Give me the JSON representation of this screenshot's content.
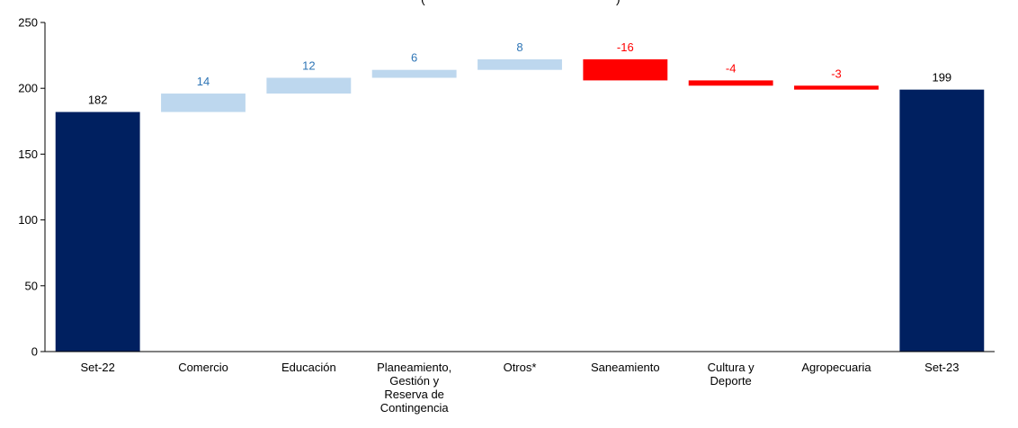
{
  "chart_data": {
    "type": "bar",
    "subtype": "waterfall",
    "title": "(",
    "title_tail": ")",
    "categories": [
      [
        "Set-22"
      ],
      [
        "Comercio"
      ],
      [
        "Educación"
      ],
      [
        "Planeamiento,",
        "Gestión y",
        "Reserva de",
        "Contingencia"
      ],
      [
        "Otros*"
      ],
      [
        "Saneamiento"
      ],
      [
        "Cultura y",
        "Deporte"
      ],
      [
        "Agropecuaria"
      ],
      [
        "Set-23"
      ]
    ],
    "values": [
      182,
      14,
      12,
      6,
      8,
      -16,
      -4,
      -3,
      199
    ],
    "value_labels": [
      "182",
      "14",
      "12",
      "6",
      "8",
      "-16",
      "-4",
      "-3",
      "199"
    ],
    "kinds": [
      "total",
      "delta",
      "delta",
      "delta",
      "delta",
      "delta",
      "delta",
      "delta",
      "total"
    ],
    "ylim": [
      0,
      250
    ],
    "yticks": [
      "0",
      "50",
      "100",
      "150",
      "200",
      "250"
    ],
    "grid": false,
    "legend": "none",
    "colors": {
      "total": "#002060",
      "increase": "#bdd7ee",
      "decrease": "#ff0000",
      "increase_label": "#2e75b6",
      "decrease_label": "#ff0000",
      "total_label": "#000000",
      "axis": "#000000"
    }
  }
}
